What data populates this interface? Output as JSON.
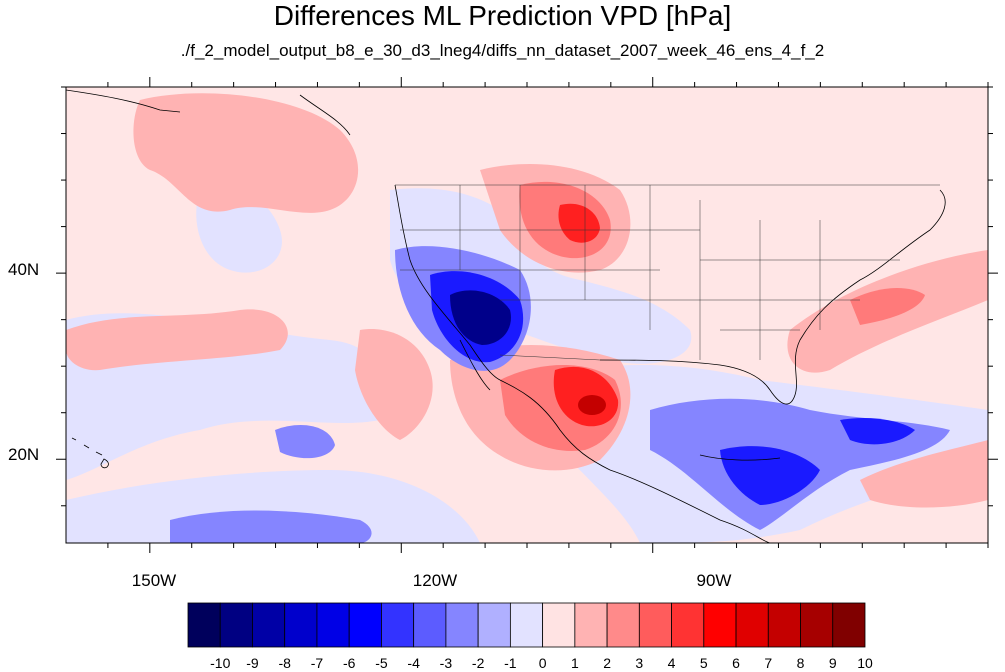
{
  "title": "Differences ML Prediction VPD [hPa]",
  "subtitle": "./f_2_model_output_b8_e_30_d3_lneg4/diffs_nn_dataset_2007_week_46_ens_4_f_2",
  "lon_ticks": [
    {
      "value": -150,
      "label": "150W"
    },
    {
      "value": -120,
      "label": "120W"
    },
    {
      "value": -90,
      "label": "90W"
    }
  ],
  "lat_ticks": [
    {
      "value": 40,
      "label": "40N"
    },
    {
      "value": 20,
      "label": "20N"
    }
  ],
  "extent": {
    "lon_min": -160,
    "lon_max": -50,
    "lat_min": 11,
    "lat_max": 60
  },
  "colorbar": {
    "labels": [
      "-10",
      "-9",
      "-8",
      "-7",
      "-6",
      "-5",
      "-4",
      "-3",
      "-2",
      "-1",
      "0",
      "1",
      "2",
      "3",
      "4",
      "5",
      "6",
      "7",
      "8",
      "9",
      "10"
    ],
    "colors": [
      "#00005c",
      "#000082",
      "#0000a6",
      "#0000cc",
      "#0000e6",
      "#0000ff",
      "#3333ff",
      "#5c5cff",
      "#8585ff",
      "#b0b0ff",
      "#e2e2ff",
      "#ffe3e3",
      "#ffb3b3",
      "#ff8a8a",
      "#ff5c5c",
      "#ff3333",
      "#ff0000",
      "#e00000",
      "#c40000",
      "#a60000",
      "#800000"
    ]
  },
  "colors": {
    "ocean_bg": "#ffe6e6",
    "coast": "#000000"
  }
}
